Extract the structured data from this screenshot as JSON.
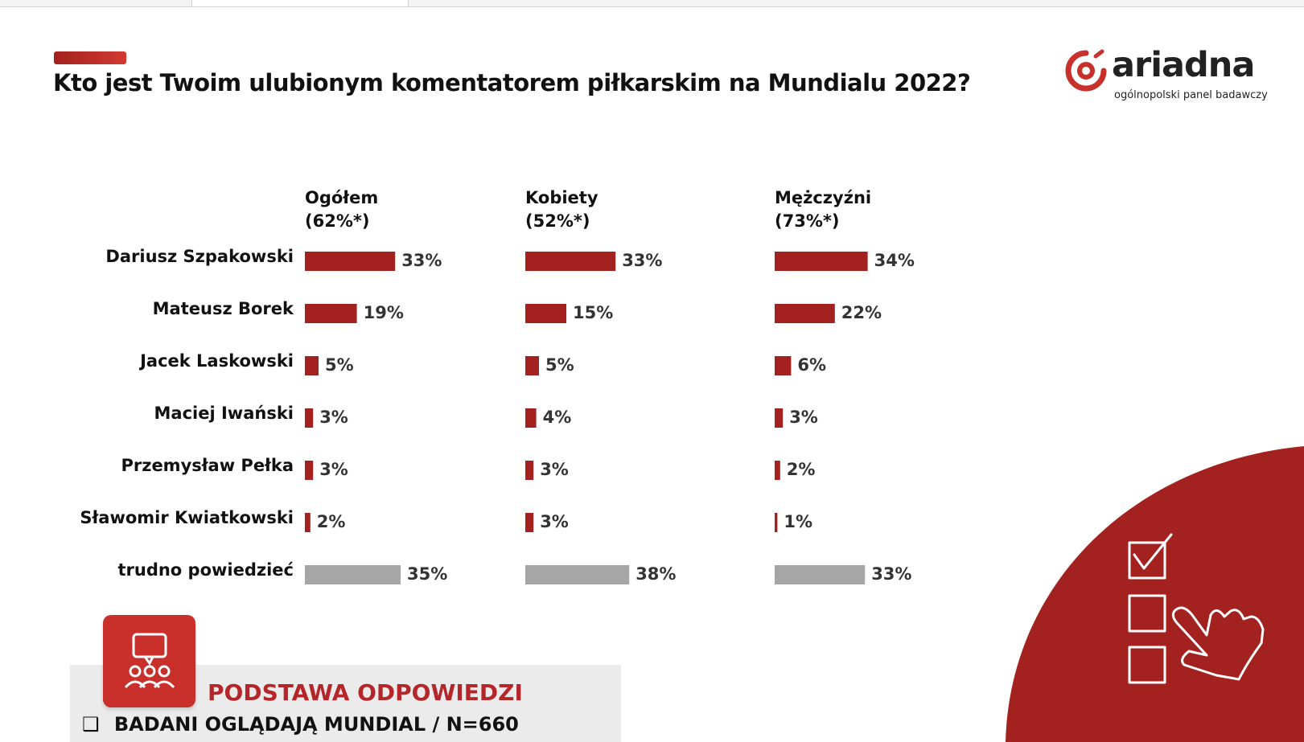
{
  "title": "Kto jest Twoim ulubionym komentatorem piłkarskim na Mundialu 2022?",
  "logo": {
    "name": "ariadna",
    "tagline": "ogólnopolski panel badawczy"
  },
  "colors": {
    "accent": "#a3221f",
    "bar_main": "#a3221f",
    "bar_neutral": "#a6a6a6"
  },
  "chart_data": {
    "type": "bar",
    "orientation": "horizontal",
    "categories": [
      "Dariusz Szpakowski",
      "Mateusz Borek",
      "Jacek Laskowski",
      "Maciej Iwański",
      "Przemysław Pełka",
      "Sławomir Kwiatkowski",
      "trudno powiedzieć"
    ],
    "series": [
      {
        "name": "Ogółem",
        "note": "(62%*)",
        "values": [
          33,
          19,
          5,
          3,
          3,
          2,
          35
        ],
        "labels": [
          "33%",
          "19%",
          "5%",
          "3%",
          "3%",
          "2%",
          "35%"
        ]
      },
      {
        "name": "Kobiety",
        "note": "(52%*)",
        "values": [
          33,
          15,
          5,
          4,
          3,
          3,
          38
        ],
        "labels": [
          "33%",
          "15%",
          "5%",
          "4%",
          "3%",
          "3%",
          "38%"
        ]
      },
      {
        "name": "Mężczyźni",
        "note": "(73%*)",
        "values": [
          34,
          22,
          6,
          3,
          2,
          1,
          33
        ],
        "labels": [
          "34%",
          "22%",
          "6%",
          "3%",
          "2%",
          "1%",
          "33%"
        ]
      }
    ],
    "neutral_category": "trudno powiedzieć",
    "unit": "%"
  },
  "basis": {
    "title": "PODSTAWA ODPOWIEDZI",
    "bullet": "❑",
    "line": "BADANI OGLĄDAJĄ MUNDIAL / N=660"
  },
  "icons": {
    "basis": "audience-chat-icon",
    "corner": "checklist-hand-icon",
    "logo": "ariadna-logo-icon"
  }
}
